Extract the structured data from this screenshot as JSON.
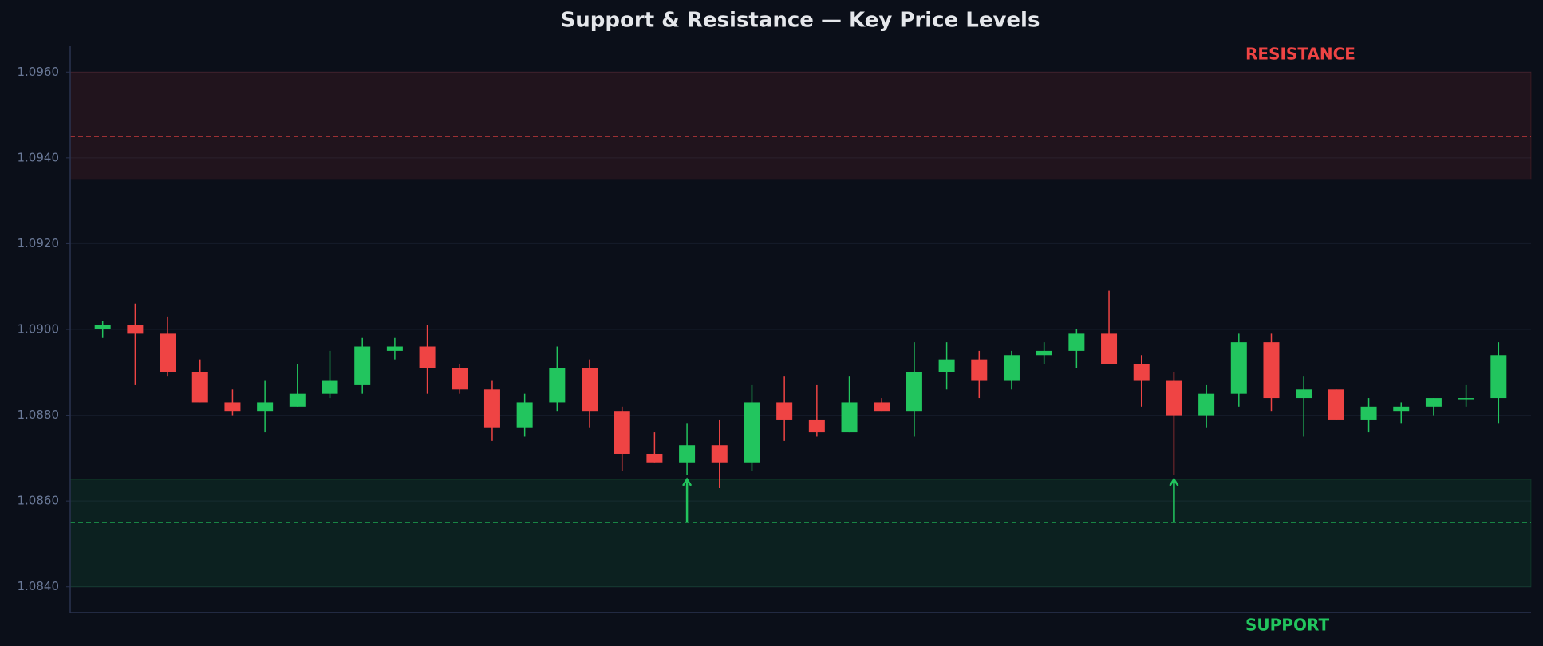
{
  "chart_data": {
    "type": "candlestick",
    "title": "Support & Resistance — Key Price Levels",
    "up_color": "#22c55e",
    "down_color": "#ef4444",
    "grid": true,
    "ylim": [
      1.0834,
      1.0966
    ],
    "yticks": [
      {
        "value": 1.084,
        "label": "1.0840"
      },
      {
        "value": 1.086,
        "label": "1.0860"
      },
      {
        "value": 1.088,
        "label": "1.0880"
      },
      {
        "value": 1.09,
        "label": "1.0900"
      },
      {
        "value": 1.092,
        "label": "1.0920"
      },
      {
        "value": 1.094,
        "label": "1.0940"
      },
      {
        "value": 1.096,
        "label": "1.0960"
      }
    ],
    "zones": [
      {
        "name": "RESISTANCE",
        "low": 1.0935,
        "high": 1.096,
        "level": 1.0945,
        "color": "#ef4444"
      },
      {
        "name": "SUPPORT",
        "low": 1.084,
        "high": 1.0865,
        "level": 1.0855,
        "color": "#22c55e"
      }
    ],
    "support_touches": [
      18,
      33
    ],
    "open": [
      1.09,
      1.0901,
      1.0899,
      1.089,
      1.0883,
      1.0881,
      1.0882,
      1.0885,
      1.0887,
      1.0895,
      1.0896,
      1.0891,
      1.0886,
      1.0877,
      1.0883,
      1.0891,
      1.0881,
      1.0871,
      1.0869,
      1.0873,
      1.0869,
      1.0883,
      1.0879,
      1.0876,
      1.0883,
      1.0881,
      1.089,
      1.0893,
      1.0888,
      1.0894,
      1.0895,
      1.0899,
      1.0892,
      1.0888,
      1.088,
      1.0885,
      1.0897,
      1.0884,
      1.0886,
      1.0879,
      1.0881,
      1.0882,
      1.0884,
      1.0884
    ],
    "high": [
      1.0902,
      1.0906,
      1.0903,
      1.0893,
      1.0886,
      1.0888,
      1.0892,
      1.0895,
      1.0898,
      1.0898,
      1.0901,
      1.0892,
      1.0888,
      1.0885,
      1.0896,
      1.0893,
      1.0882,
      1.0876,
      1.0878,
      1.0879,
      1.0887,
      1.0889,
      1.0887,
      1.0889,
      1.0884,
      1.0897,
      1.0897,
      1.0895,
      1.0895,
      1.0897,
      1.09,
      1.0909,
      1.0894,
      1.089,
      1.0887,
      1.0899,
      1.0899,
      1.0889,
      1.0886,
      1.0884,
      1.0883,
      1.0884,
      1.0887,
      1.0897
    ],
    "low": [
      1.0898,
      1.0887,
      1.0889,
      1.0883,
      1.088,
      1.0876,
      1.0882,
      1.0884,
      1.0885,
      1.0893,
      1.0885,
      1.0885,
      1.0874,
      1.0875,
      1.0881,
      1.0877,
      1.0867,
      1.0869,
      1.0866,
      1.0863,
      1.0867,
      1.0874,
      1.0875,
      1.0876,
      1.0881,
      1.0875,
      1.0886,
      1.0884,
      1.0886,
      1.0892,
      1.0891,
      1.0892,
      1.0882,
      1.0866,
      1.0877,
      1.0882,
      1.0881,
      1.0875,
      1.0879,
      1.0876,
      1.0878,
      1.088,
      1.0882,
      1.0878
    ],
    "close": [
      1.0901,
      1.0899,
      1.089,
      1.0883,
      1.0881,
      1.0883,
      1.0885,
      1.0888,
      1.0896,
      1.0896,
      1.0891,
      1.0886,
      1.0877,
      1.0883,
      1.0891,
      1.0881,
      1.0871,
      1.0869,
      1.0873,
      1.0869,
      1.0883,
      1.0879,
      1.0876,
      1.0883,
      1.0881,
      1.089,
      1.0893,
      1.0888,
      1.0894,
      1.0895,
      1.0899,
      1.0892,
      1.0888,
      1.088,
      1.0885,
      1.0897,
      1.0884,
      1.0886,
      1.0879,
      1.0882,
      1.0882,
      1.0884,
      1.0884,
      1.0894
    ]
  }
}
